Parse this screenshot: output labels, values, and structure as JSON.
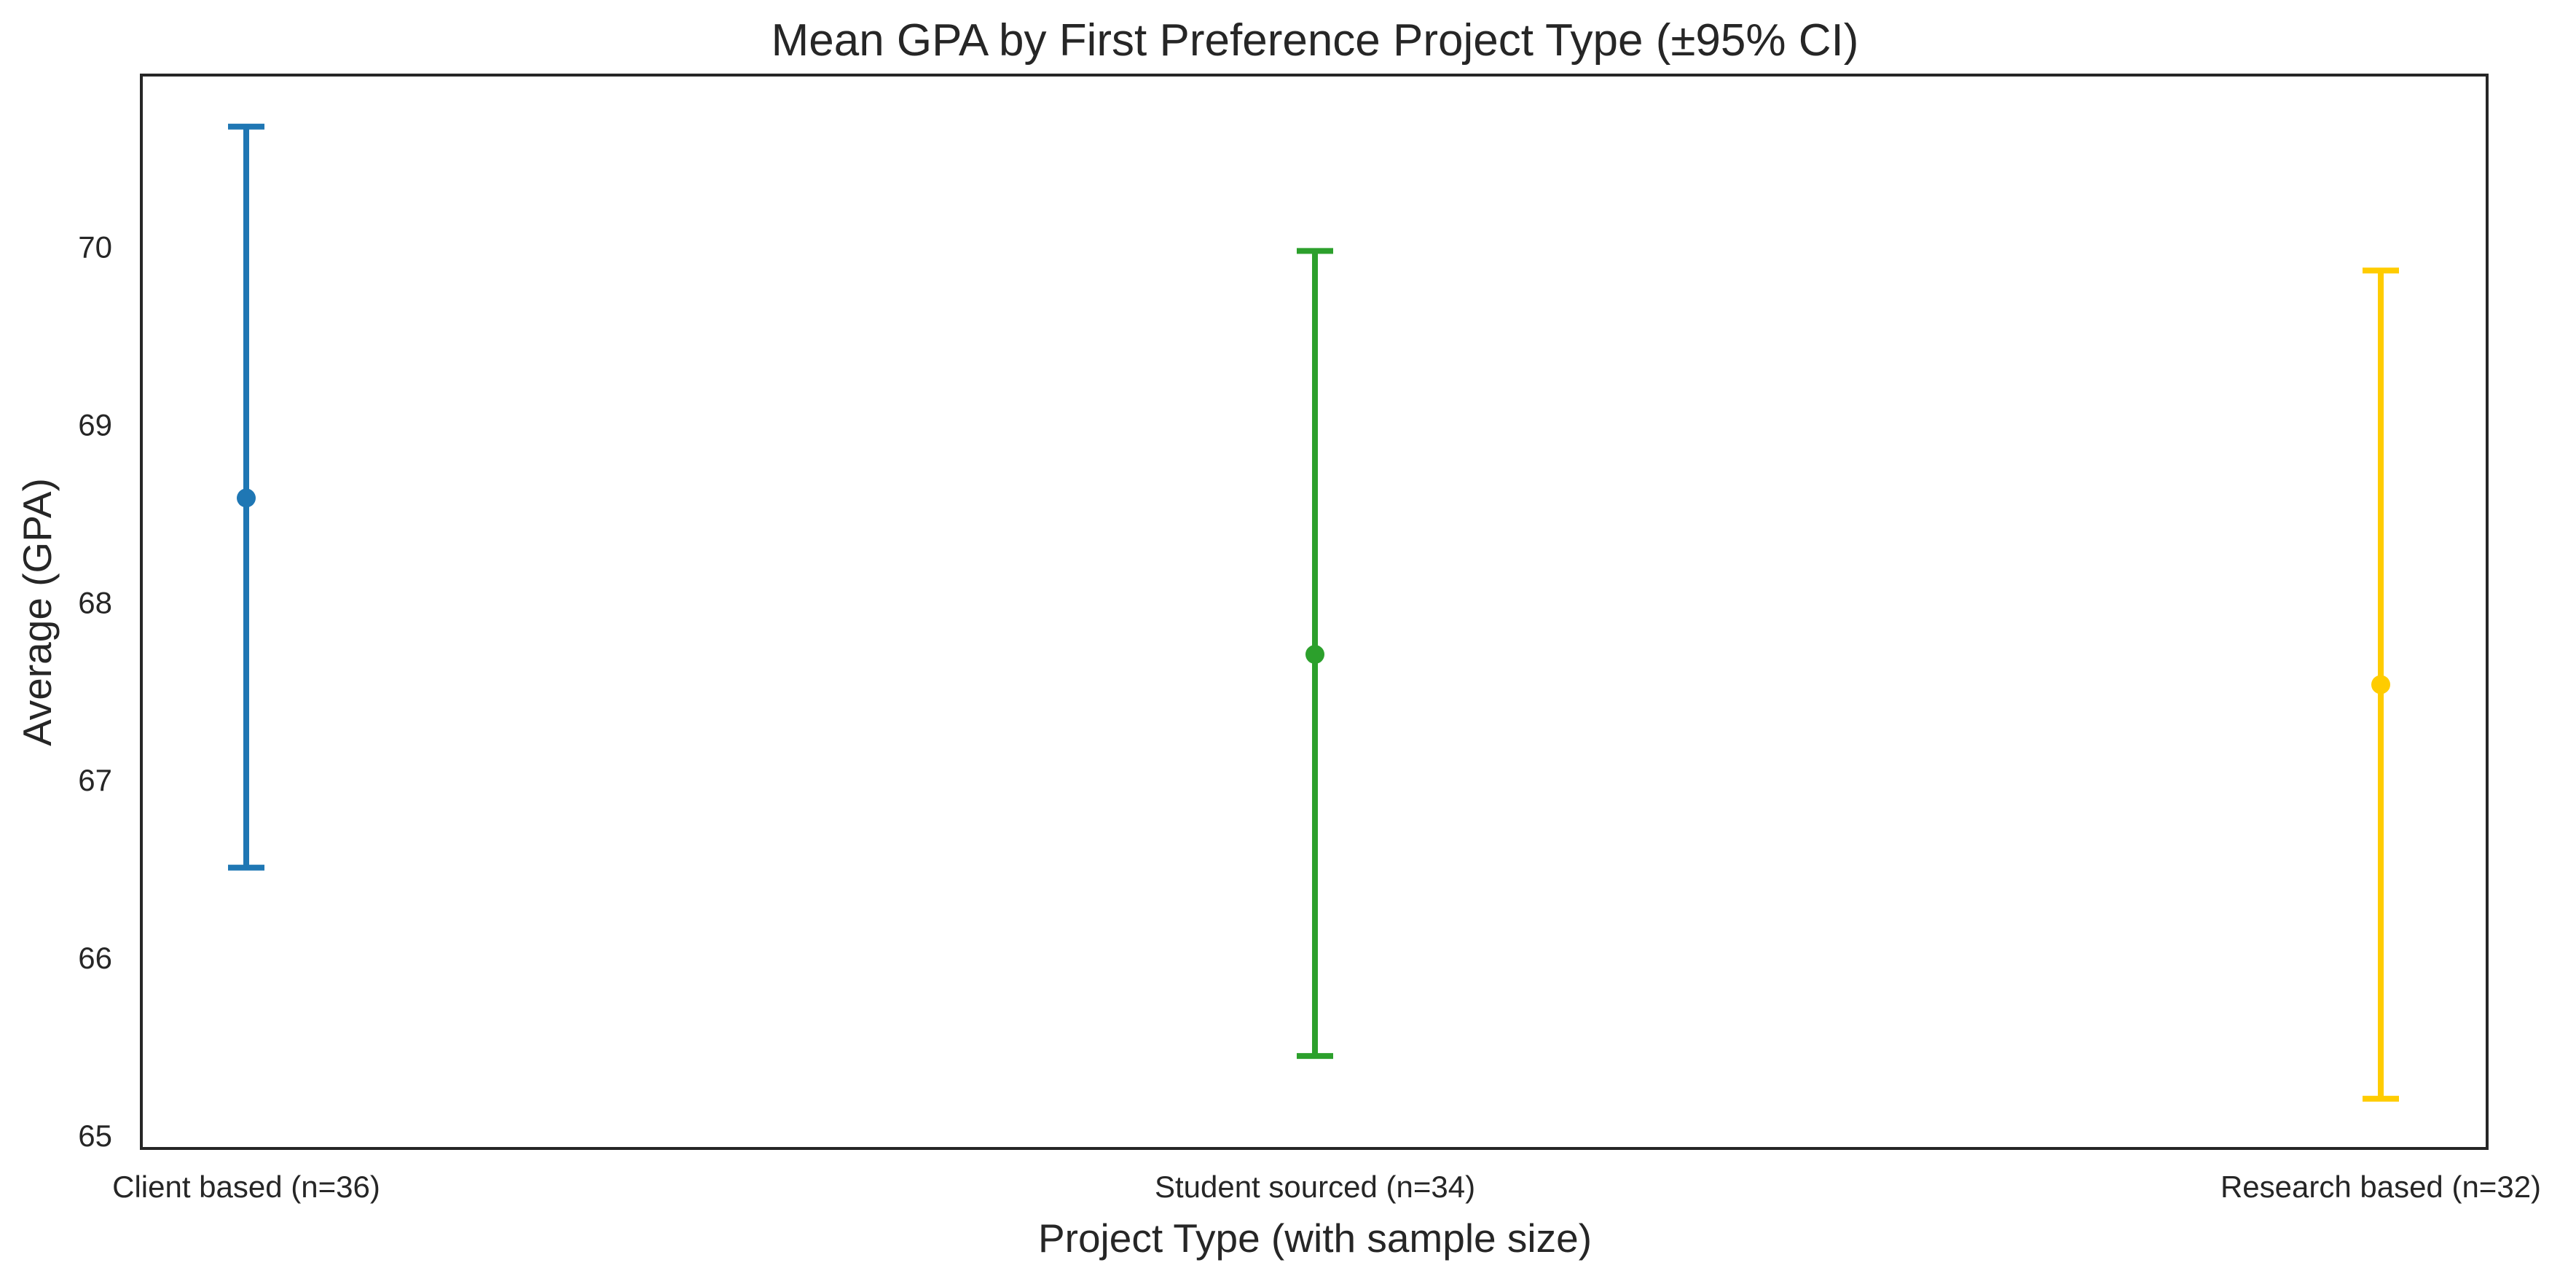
{
  "chart_data": {
    "type": "errorbar",
    "title": "Mean GPA by First Preference Project Type (±95% CI)",
    "xlabel": "Project Type (with sample size)",
    "ylabel": "Average (GPA)",
    "ylim": [
      64.93,
      70.97
    ],
    "yticks": [
      65,
      66,
      67,
      68,
      69,
      70
    ],
    "grid": false,
    "categories": [
      "Client based (n=36)",
      "Student sourced (n=34)",
      "Research based (n=32)"
    ],
    "points": [
      {
        "category": "Client based (n=36)",
        "mean": 68.59,
        "ci_low": 66.51,
        "ci_high": 70.68,
        "color": "#1f77b4"
      },
      {
        "category": "Student sourced (n=34)",
        "mean": 67.71,
        "ci_low": 65.45,
        "ci_high": 69.98,
        "color": "#2ca02c"
      },
      {
        "category": "Research based (n=32)",
        "mean": 67.54,
        "ci_low": 65.21,
        "ci_high": 69.87,
        "color": "#ffcc00"
      }
    ]
  }
}
